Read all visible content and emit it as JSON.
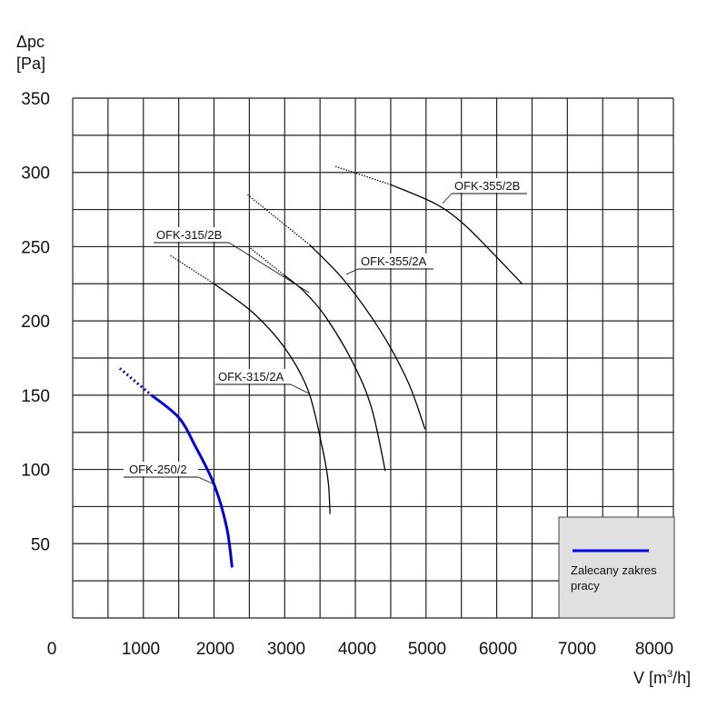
{
  "chart_data": {
    "type": "line",
    "ylabel_lines": [
      "Δpc",
      "[Pa]"
    ],
    "xlabel": "V [m³/h]",
    "xlabel_prefix": "V [m",
    "xlabel_sup": "3",
    "xlabel_suffix": "/h]",
    "xlim": [
      0,
      8500
    ],
    "ylim": [
      0,
      350
    ],
    "grid": true,
    "x_grid_step": 500,
    "y_grid_step": 25,
    "x_ticks": [
      0,
      1000,
      2000,
      3000,
      4000,
      5000,
      6000,
      7000,
      8000
    ],
    "x_tick_labels": [
      "0",
      "1000",
      "2000",
      "3000",
      "4000",
      "5000",
      "6000",
      "7000",
      "8000"
    ],
    "y_ticks": [
      50,
      100,
      150,
      200,
      250,
      300,
      350
    ],
    "y_tick_labels": [
      "50",
      "100",
      "150",
      "200",
      "250",
      "300",
      "350"
    ],
    "legend": {
      "placement": "bottom-right",
      "label": "Zalecany zakres pracy",
      "label_lines": [
        "Zalecany zakres",
        "pracy"
      ],
      "color": "#0000dd",
      "background": "#e0e0e0"
    },
    "series": [
      {
        "name": "OFK-250/2",
        "color": "#0000dd",
        "recommended": true,
        "dotted": [
          [
            667,
            168
          ],
          [
            1115,
            150
          ]
        ],
        "solid": [
          [
            1115,
            150
          ],
          [
            1500,
            135
          ],
          [
            1731,
            116
          ],
          [
            2000,
            90
          ],
          [
            2179,
            61
          ],
          [
            2256,
            34
          ]
        ]
      },
      {
        "name": "OFK-315/2A",
        "color": "#000000",
        "recommended": false,
        "dotted": [
          [
            1385,
            244
          ],
          [
            2000,
            225
          ]
        ],
        "solid": [
          [
            2000,
            225
          ],
          [
            2564,
            205
          ],
          [
            3013,
            181
          ],
          [
            3333,
            153
          ],
          [
            3526,
            116
          ],
          [
            3615,
            92
          ],
          [
            3641,
            70
          ]
        ]
      },
      {
        "name": "OFK-315/2B",
        "color": "#000000",
        "recommended": false,
        "dotted": [
          [
            2513,
            249
          ],
          [
            2987,
            231
          ]
        ],
        "solid": [
          [
            2987,
            231
          ],
          [
            3270,
            220
          ],
          [
            3590,
            202
          ],
          [
            3974,
            171
          ],
          [
            4231,
            141
          ],
          [
            4423,
            99
          ]
        ]
      },
      {
        "name": "OFK-355/2A",
        "color": "#000000",
        "recommended": false,
        "dotted": [
          [
            2474,
            285
          ],
          [
            3359,
            251
          ]
        ],
        "solid": [
          [
            3359,
            251
          ],
          [
            3846,
            227
          ],
          [
            4359,
            193
          ],
          [
            4744,
            159
          ],
          [
            4987,
            127
          ]
        ]
      },
      {
        "name": "OFK-355/2B",
        "color": "#000000",
        "recommended": false,
        "dotted": [
          [
            3718,
            304
          ],
          [
            4487,
            292
          ]
        ],
        "solid": [
          [
            4487,
            292
          ],
          [
            5128,
            279
          ],
          [
            5513,
            266
          ],
          [
            5897,
            248
          ],
          [
            6359,
            225
          ]
        ]
      }
    ]
  }
}
